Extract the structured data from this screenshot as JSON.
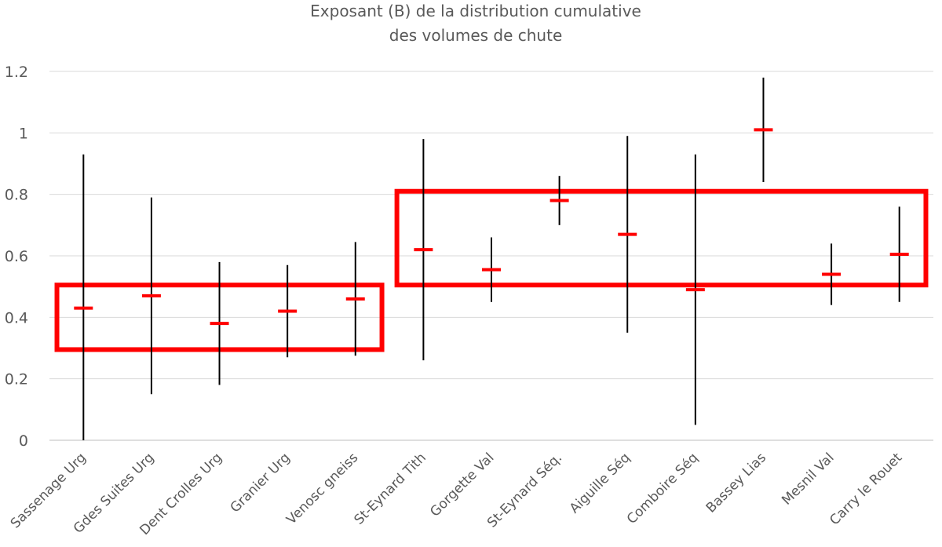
{
  "chart_data": {
    "type": "scatter",
    "title": [
      "Exposant (B) de la distribution cumulative",
      "des volumes de chute"
    ],
    "xlabel": "",
    "ylabel": "",
    "ylim": [
      0,
      1.2
    ],
    "yticks": [
      "0",
      "0.2",
      "0.4",
      "0.6",
      "0.8",
      "1",
      "1.2"
    ],
    "grid": true,
    "categories": [
      "Sassenage Urg",
      "Gdes Suites Urg",
      "Dent Crolles Urg",
      "Granier Urg",
      "Venosc gneiss",
      "St-Eynard Tith",
      "Gorgette Val",
      "St-Eynard Séq.",
      "Aiguille Séq",
      "Comboire Séq",
      "Bassey Lias",
      "Mesnil Val",
      "Carry le Rouet"
    ],
    "series": [
      {
        "values": [
          0.43,
          0.47,
          0.38,
          0.42,
          0.46,
          0.62,
          0.555,
          0.78,
          0.67,
          0.49,
          1.01,
          0.54,
          0.605
        ],
        "lower": [
          0.0,
          0.15,
          0.18,
          0.27,
          0.275,
          0.26,
          0.45,
          0.7,
          0.35,
          0.05,
          0.84,
          0.44,
          0.45
        ],
        "upper": [
          0.93,
          0.79,
          0.58,
          0.57,
          0.645,
          0.98,
          0.66,
          0.86,
          0.99,
          0.93,
          1.18,
          0.64,
          0.76
        ],
        "marker_color": "#ff0000",
        "error_color": "#000000"
      }
    ],
    "highlight_groups": [
      {
        "from": "Sassenage Urg",
        "to": "Venosc gneiss",
        "ymin": 0.295,
        "ymax": 0.505,
        "color": "#ff0000"
      },
      {
        "from": "St-Eynard Tith",
        "to": "Carry le Rouet",
        "ymin": 0.505,
        "ymax": 0.81,
        "color": "#ff0000"
      }
    ]
  }
}
